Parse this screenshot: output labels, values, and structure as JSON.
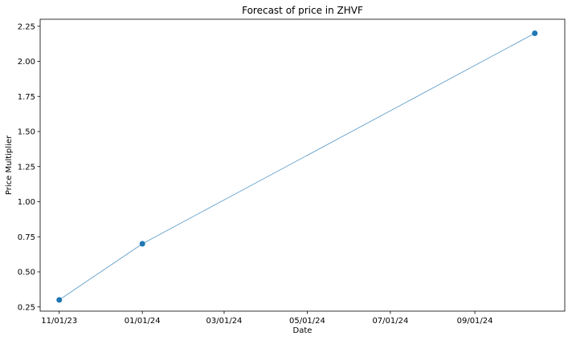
{
  "chart_data": {
    "type": "line",
    "title": "Forecast of price in ZHVF",
    "xlabel": "Date",
    "ylabel": "Price Multiplier",
    "x_tick_labels": [
      "11/01/23",
      "01/01/24",
      "03/01/24",
      "05/01/24",
      "07/01/24",
      "09/01/24"
    ],
    "x_ticks": [
      "2023-11-01",
      "2024-01-01",
      "2024-03-01",
      "2024-05-01",
      "2024-07-01",
      "2024-09-01"
    ],
    "y_ticks": [
      0.25,
      0.5,
      0.75,
      1.0,
      1.25,
      1.5,
      1.75,
      2.0,
      2.25
    ],
    "y_tick_labels": [
      "0.25",
      "0.50",
      "0.75",
      "1.00",
      "1.25",
      "1.50",
      "1.75",
      "2.00",
      "2.25"
    ],
    "xlim": [
      "2023-10-18",
      "2024-11-06"
    ],
    "ylim": [
      0.22,
      2.3
    ],
    "grid": false,
    "series": [
      {
        "x": [
          "2023-11-01",
          "2024-01-01",
          "2024-10-15"
        ],
        "y": [
          0.3,
          0.7,
          2.2
        ],
        "color": "#1f77b4"
      }
    ]
  }
}
